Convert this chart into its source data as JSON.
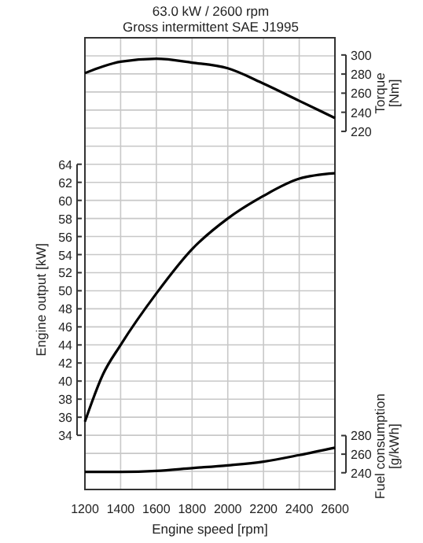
{
  "chart_data": {
    "type": "line",
    "title": "63.0 kW / 2600 rpm",
    "subtitle": "Gross intermittent SAE J1995",
    "xlabel": "Engine speed [rpm]",
    "ylabel": "Engine output [kW]",
    "y2label": "Torque\n[Nm]",
    "y3label": "Fuel consumption\n[g/kWh]",
    "x": [
      1200,
      1300,
      1400,
      1600,
      1800,
      2000,
      2200,
      2400,
      2600
    ],
    "xlim": [
      1200,
      2600
    ],
    "xticks": [
      1200,
      1400,
      1600,
      1800,
      2000,
      2200,
      2400,
      2600
    ],
    "ylim": [
      28,
      78
    ],
    "yticks": [
      {
        "value": 28,
        "label": null
      },
      {
        "value": 30,
        "label": null
      },
      {
        "value": 32,
        "label": null
      },
      34,
      36,
      38,
      40,
      42,
      44,
      46,
      48,
      50,
      52,
      54,
      56,
      58,
      60,
      62,
      64,
      {
        "value": 66,
        "label": null
      },
      {
        "value": 68,
        "label": null
      },
      {
        "value": 70,
        "label": null
      },
      {
        "value": 72,
        "label": null
      },
      {
        "value": 74,
        "label": null
      },
      {
        "value": 76,
        "label": null
      },
      {
        "value": 78,
        "label": null
      }
    ],
    "y2lim": [
      -155,
      318
    ],
    "y2ticks": [
      220,
      240,
      260,
      280,
      300
    ],
    "y3lim": [
      222,
      708
    ],
    "y3ticks": [
      240,
      260,
      280
    ],
    "grid": true,
    "marker": "none",
    "line_style": "solid",
    "series": [
      {
        "color": "#000000",
        "axis": "y2",
        "values": [
          281,
          288,
          293,
          296,
          292,
          286,
          270,
          252,
          234
        ]
      },
      {
        "color": "#000000",
        "values": [
          35.5,
          40.7,
          44,
          49.7,
          54.6,
          58,
          60.5,
          62.4,
          63
        ]
      },
      {
        "color": "#000000",
        "axis": "y3",
        "values": [
          241,
          241,
          241,
          242,
          245,
          248,
          252,
          259,
          267
        ]
      }
    ]
  }
}
